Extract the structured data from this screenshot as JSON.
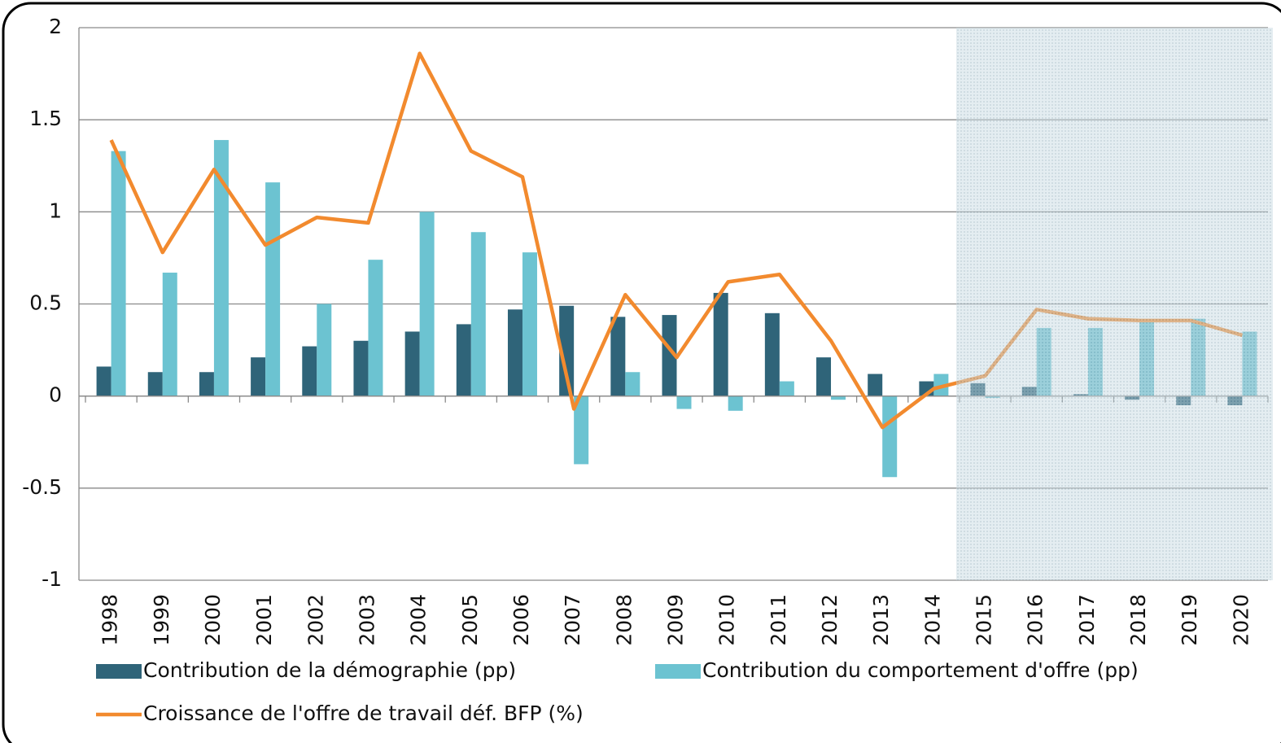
{
  "chart_data": {
    "type": "bar-line",
    "categories": [
      "1998",
      "1999",
      "2000",
      "2001",
      "2002",
      "2003",
      "2004",
      "2005",
      "2006",
      "2007",
      "2008",
      "2009",
      "2010",
      "2011",
      "2012",
      "2013",
      "2014",
      "2015",
      "2016",
      "2017",
      "2018",
      "2019",
      "2020"
    ],
    "series": [
      {
        "name": "Contribution de la démographie (pp)",
        "type": "bar",
        "color": "#2f6479",
        "values": [
          0.16,
          0.13,
          0.13,
          0.21,
          0.27,
          0.3,
          0.35,
          0.39,
          0.47,
          0.49,
          0.43,
          0.44,
          0.56,
          0.45,
          0.21,
          0.12,
          0.08,
          0.07,
          0.05,
          0.01,
          -0.02,
          -0.05,
          -0.05
        ]
      },
      {
        "name": "Contribution du comportement d'offre (pp)",
        "type": "bar",
        "color": "#6cc3d1",
        "values": [
          1.33,
          0.67,
          1.39,
          1.16,
          0.5,
          0.74,
          1.0,
          0.89,
          0.78,
          -0.37,
          0.13,
          -0.07,
          -0.08,
          0.08,
          -0.02,
          -0.44,
          0.12,
          -0.01,
          0.37,
          0.37,
          0.41,
          0.42,
          0.35
        ]
      },
      {
        "name": "Croissance de l'offre de travail déf. BFP (%)",
        "type": "line",
        "color": "#f28a2e",
        "values": [
          1.39,
          0.78,
          1.23,
          0.82,
          0.97,
          0.94,
          1.86,
          1.33,
          1.19,
          -0.07,
          0.55,
          0.21,
          0.62,
          0.66,
          0.3,
          -0.17,
          0.04,
          0.11,
          0.47,
          0.42,
          0.41,
          0.41,
          0.33
        ]
      }
    ],
    "ylim": [
      -1,
      2
    ],
    "yticks": [
      2,
      1.5,
      1,
      0.5,
      0,
      -0.5,
      -1
    ],
    "grid": true,
    "shade_from": "2015"
  }
}
